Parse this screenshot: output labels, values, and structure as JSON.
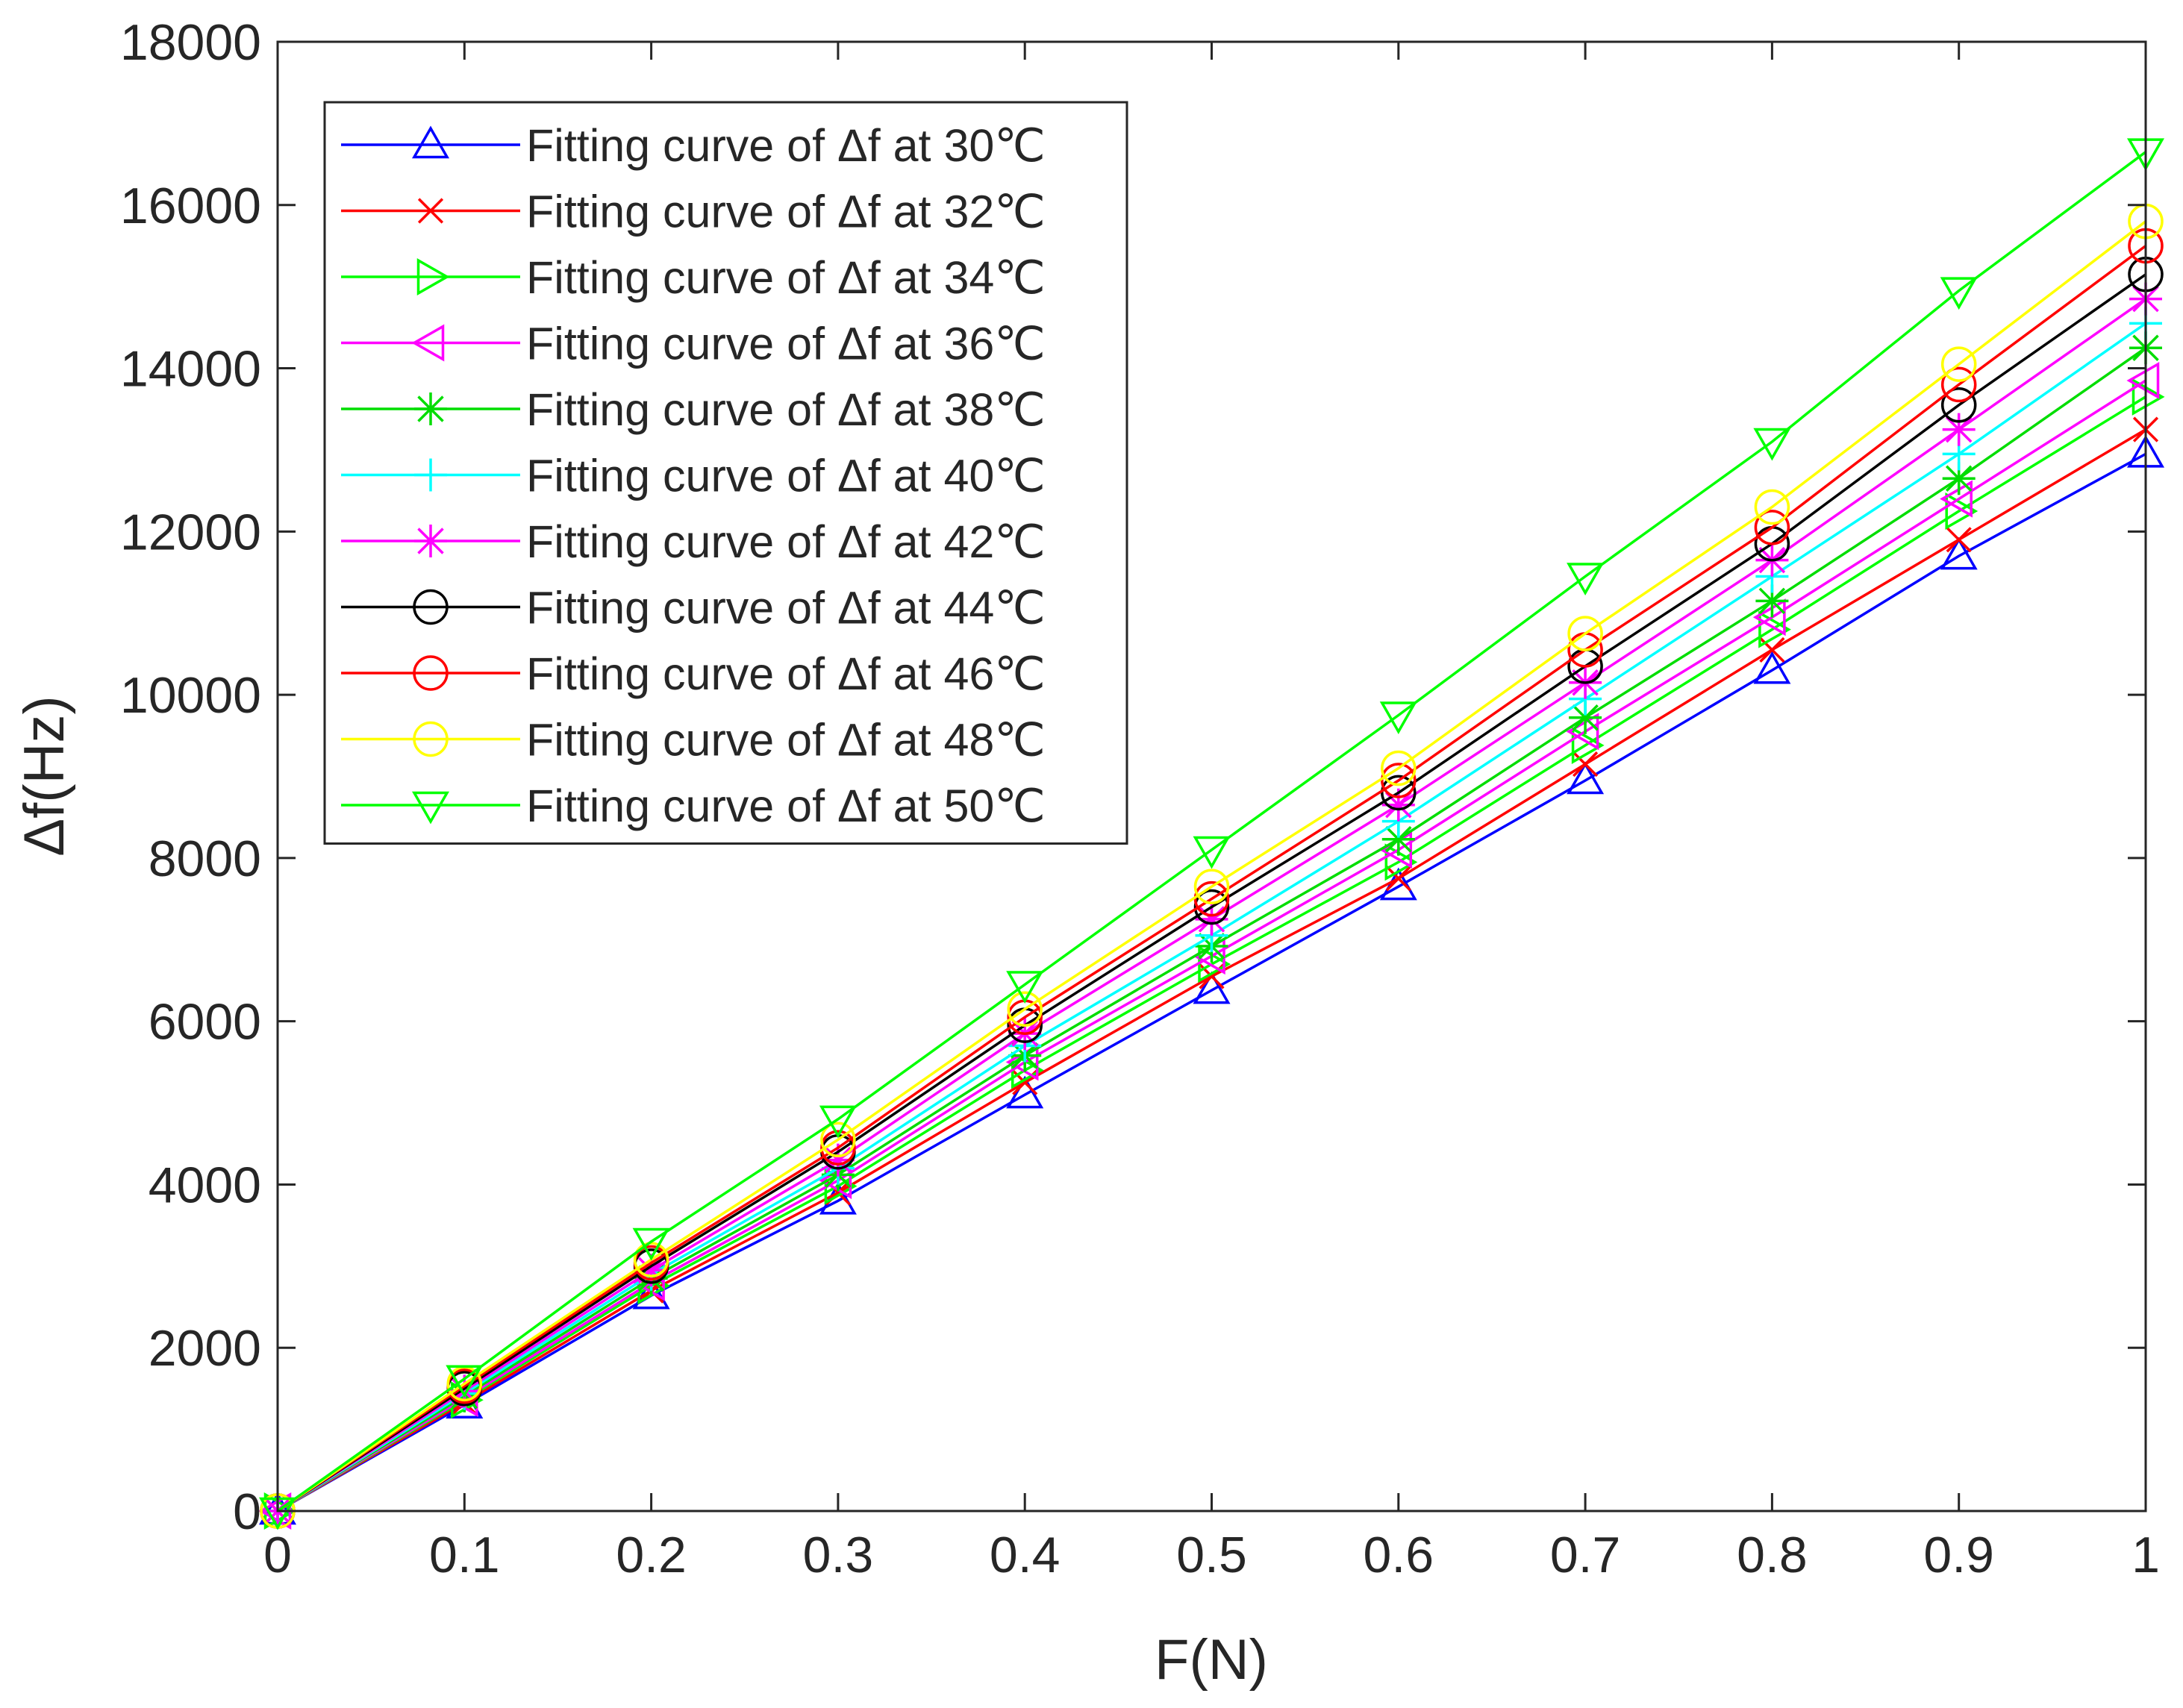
{
  "chart_data": {
    "type": "line",
    "title": "",
    "xlabel": "F(N)",
    "ylabel": "Δf(Hz)",
    "xlim": [
      0,
      1
    ],
    "ylim": [
      0,
      18000
    ],
    "xticks": [
      0,
      0.1,
      0.2,
      0.3,
      0.4,
      0.5,
      0.6,
      0.7,
      0.8,
      0.9,
      1
    ],
    "xtick_labels": [
      "0",
      "0.1",
      "0.2",
      "0.3",
      "0.4",
      "0.5",
      "0.6",
      "0.7",
      "0.8",
      "0.9",
      "1"
    ],
    "yticks": [
      0,
      2000,
      4000,
      6000,
      8000,
      10000,
      12000,
      14000,
      16000,
      18000
    ],
    "ytick_labels": [
      "0",
      "2000",
      "4000",
      "6000",
      "8000",
      "10000",
      "12000",
      "14000",
      "16000",
      "18000"
    ],
    "grid": false,
    "legend_position": "top-left",
    "x": [
      0,
      0.1,
      0.2,
      0.3,
      0.4,
      0.5,
      0.6,
      0.7,
      0.8,
      0.9,
      1
    ],
    "series": [
      {
        "name": "Fitting curve of Δf at 30℃",
        "color": "#0000FF",
        "marker": "triangle-up",
        "values": [
          0,
          1300,
          2640,
          3800,
          5100,
          6380,
          7650,
          8950,
          10300,
          11700,
          12950
        ]
      },
      {
        "name": "Fitting curve of Δf at 32℃",
        "color": "#FF0000",
        "marker": "x",
        "values": [
          0,
          1330,
          2700,
          3900,
          5250,
          6550,
          7750,
          9150,
          10550,
          11900,
          13250
        ]
      },
      {
        "name": "Fitting curve of Δf at 34℃",
        "color": "#00FF00",
        "marker": "triangle-right",
        "values": [
          0,
          1360,
          2760,
          3980,
          5400,
          6700,
          7950,
          9380,
          10800,
          12250,
          13650
        ]
      },
      {
        "name": "Fitting curve of Δf at 36℃",
        "color": "#FF00FF",
        "marker": "triangle-left",
        "values": [
          0,
          1380,
          2800,
          4050,
          5500,
          6800,
          8100,
          9550,
          10950,
          12400,
          13850
        ]
      },
      {
        "name": "Fitting curve of Δf at 38℃",
        "color": "#00DD00",
        "marker": "asterisk",
        "values": [
          0,
          1410,
          2850,
          4120,
          5580,
          6920,
          8230,
          9720,
          11150,
          12650,
          14250
        ]
      },
      {
        "name": "Fitting curve of Δf at 40℃",
        "color": "#00FFFF",
        "marker": "plus",
        "values": [
          0,
          1440,
          2900,
          4200,
          5700,
          7050,
          8450,
          9950,
          11450,
          12950,
          14550
        ]
      },
      {
        "name": "Fitting curve of Δf at 42℃",
        "color": "#FF00FF",
        "marker": "asterisk",
        "values": [
          0,
          1470,
          2950,
          4300,
          5850,
          7250,
          8650,
          10150,
          11650,
          13250,
          14850
        ]
      },
      {
        "name": "Fitting curve of Δf at 44℃",
        "color": "#000000",
        "marker": "circle",
        "values": [
          0,
          1500,
          3000,
          4400,
          5950,
          7400,
          8800,
          10350,
          11850,
          13550,
          15150
        ]
      },
      {
        "name": "Fitting curve of Δf at 46℃",
        "color": "#FF0000",
        "marker": "circle",
        "values": [
          0,
          1530,
          3040,
          4450,
          6050,
          7500,
          8950,
          10550,
          12050,
          13800,
          15500
        ]
      },
      {
        "name": "Fitting curve of Δf at 48℃",
        "color": "#FFFF00",
        "marker": "circle",
        "values": [
          0,
          1560,
          3080,
          4550,
          6150,
          7650,
          9100,
          10750,
          12300,
          14050,
          15800
        ]
      },
      {
        "name": "Fitting curve of Δf at 50℃",
        "color": "#00FF00",
        "marker": "triangle-down",
        "values": [
          0,
          1620,
          3300,
          4800,
          6450,
          8100,
          9750,
          11450,
          13100,
          14950,
          16650
        ]
      }
    ]
  }
}
